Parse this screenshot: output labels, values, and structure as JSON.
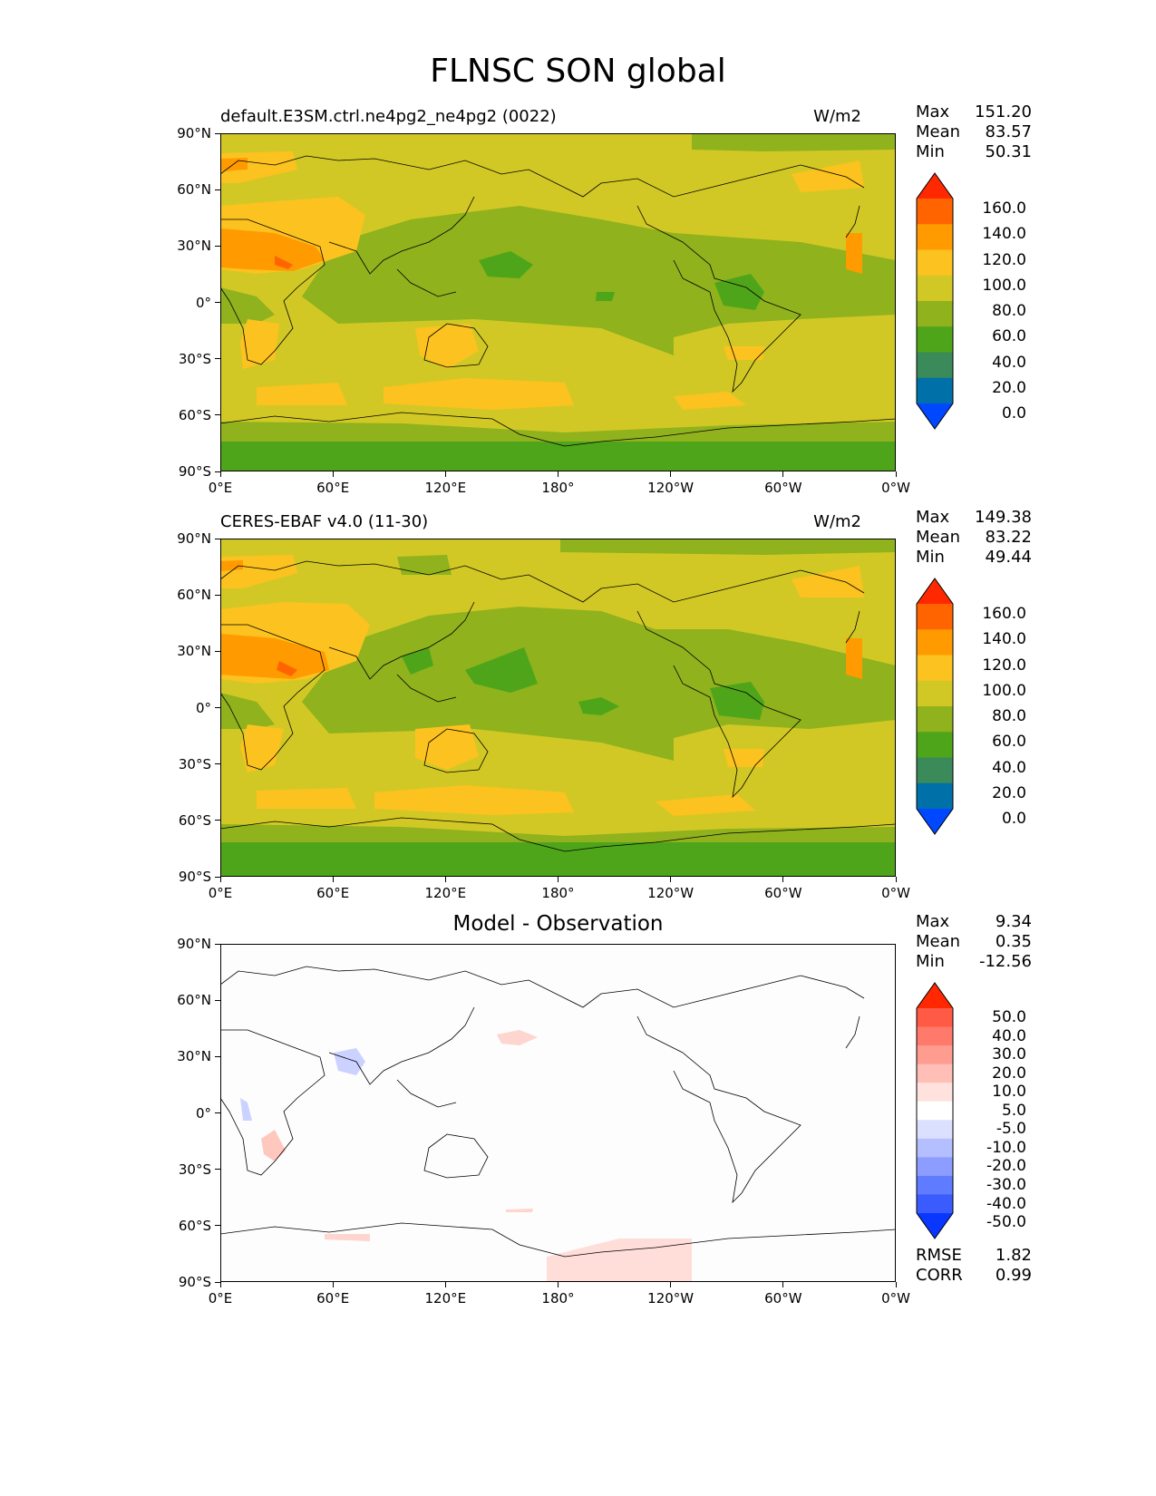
{
  "figure": {
    "title": "FLNSC SON global"
  },
  "chart_data": [
    {
      "type": "heatmap",
      "panel": "test",
      "title_left": "default.E3SM.ctrl.ne4pg2_ne4pg2 (0022)",
      "title_right": "W/m2",
      "stats": [
        {
          "label": "Max",
          "value": "151.20"
        },
        {
          "label": "Mean",
          "value": "83.57"
        },
        {
          "label": "Min",
          "value": "50.31"
        }
      ],
      "xticks": [
        "0°E",
        "60°E",
        "120°E",
        "180°",
        "120°W",
        "60°W",
        "0°W"
      ],
      "yticks": [
        "90°N",
        "60°N",
        "30°N",
        "0°",
        "30°S",
        "60°S",
        "90°S"
      ],
      "xlim": [
        0,
        360
      ],
      "ylim": [
        -90,
        90
      ],
      "colorbar": {
        "levels": [
          "160.0",
          "140.0",
          "120.0",
          "100.0",
          "80.0",
          "60.0",
          "40.0",
          "20.0",
          "0.0"
        ],
        "colors": [
          "#ff2800",
          "#ff6400",
          "#ff9a00",
          "#fcc21f",
          "#d2c825",
          "#8fb21d",
          "#4ea51a",
          "#3a8a5a",
          "#0070a8",
          "#0048ff"
        ],
        "extend": "both"
      }
    },
    {
      "type": "heatmap",
      "panel": "reference",
      "title_left": "CERES-EBAF v4.0 (11-30)",
      "title_right": "W/m2",
      "stats": [
        {
          "label": "Max",
          "value": "149.38"
        },
        {
          "label": "Mean",
          "value": "83.22"
        },
        {
          "label": "Min",
          "value": "49.44"
        }
      ],
      "xticks": [
        "0°E",
        "60°E",
        "120°E",
        "180°",
        "120°W",
        "60°W",
        "0°W"
      ],
      "yticks": [
        "90°N",
        "60°N",
        "30°N",
        "0°",
        "30°S",
        "60°S",
        "90°S"
      ],
      "xlim": [
        0,
        360
      ],
      "ylim": [
        -90,
        90
      ],
      "colorbar": {
        "levels": [
          "160.0",
          "140.0",
          "120.0",
          "100.0",
          "80.0",
          "60.0",
          "40.0",
          "20.0",
          "0.0"
        ],
        "colors": [
          "#ff2800",
          "#ff6400",
          "#ff9a00",
          "#fcc21f",
          "#d2c825",
          "#8fb21d",
          "#4ea51a",
          "#3a8a5a",
          "#0070a8",
          "#0048ff"
        ],
        "extend": "both"
      }
    },
    {
      "type": "heatmap",
      "panel": "difference",
      "title_center": "Model - Observation",
      "stats": [
        {
          "label": "Max",
          "value": "9.34"
        },
        {
          "label": "Mean",
          "value": "0.35"
        },
        {
          "label": "Min",
          "value": "-12.56"
        }
      ],
      "metrics": [
        {
          "label": "RMSE",
          "value": "1.82"
        },
        {
          "label": "CORR",
          "value": "0.99"
        }
      ],
      "xticks": [
        "0°E",
        "60°E",
        "120°E",
        "180°",
        "120°W",
        "60°W",
        "0°W"
      ],
      "yticks": [
        "90°N",
        "60°N",
        "30°N",
        "0°",
        "30°S",
        "60°S",
        "90°S"
      ],
      "xlim": [
        0,
        360
      ],
      "ylim": [
        -90,
        90
      ],
      "colorbar": {
        "levels": [
          "50.0",
          "40.0",
          "30.0",
          "20.0",
          "10.0",
          "5.0",
          "-5.0",
          "-10.0",
          "-20.0",
          "-30.0",
          "-40.0",
          "-50.0"
        ],
        "colors": [
          "#ff2800",
          "#ff5a46",
          "#ff7a6a",
          "#ff9c90",
          "#ffbfb6",
          "#ffe2dd",
          "#ffffff",
          "#dbe0ff",
          "#b4bfff",
          "#8c9dff",
          "#5f7bff",
          "#3a5cff",
          "#0a37ff"
        ],
        "extend": "both"
      }
    }
  ]
}
